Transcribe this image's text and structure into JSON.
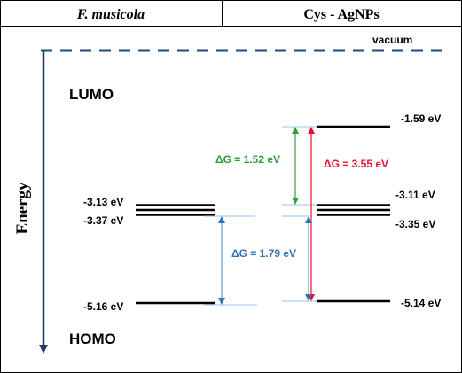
{
  "header": {
    "left": "F. musicola",
    "right": "Cys - AgNPs"
  },
  "diagram": {
    "vacuum_label": "vacuum",
    "lumo_label": "LUMO",
    "homo_label": "HOMO",
    "axis_label": "Energy",
    "left_levels": {
      "upper": "-3.13 eV",
      "lower": "-3.37 eV",
      "homo": "-5.16 eV"
    },
    "right_levels": {
      "lumo": "-1.59 eV",
      "upper": "-3.11 eV",
      "lower": "-3.35 eV",
      "homo": "-5.14 eV"
    },
    "gaps": {
      "green": "ΔG = 1.52 eV",
      "red": "ΔG = 3.55 eV",
      "blue": "ΔG = 1.79 eV"
    }
  },
  "colors": {
    "axis": "#1f3864",
    "vacuum": "#1f4e79",
    "green": "#2e9e3e",
    "red": "#e8112d",
    "blue": "#2e75b6",
    "level": "#000000",
    "guide": "#9dc3e6"
  }
}
